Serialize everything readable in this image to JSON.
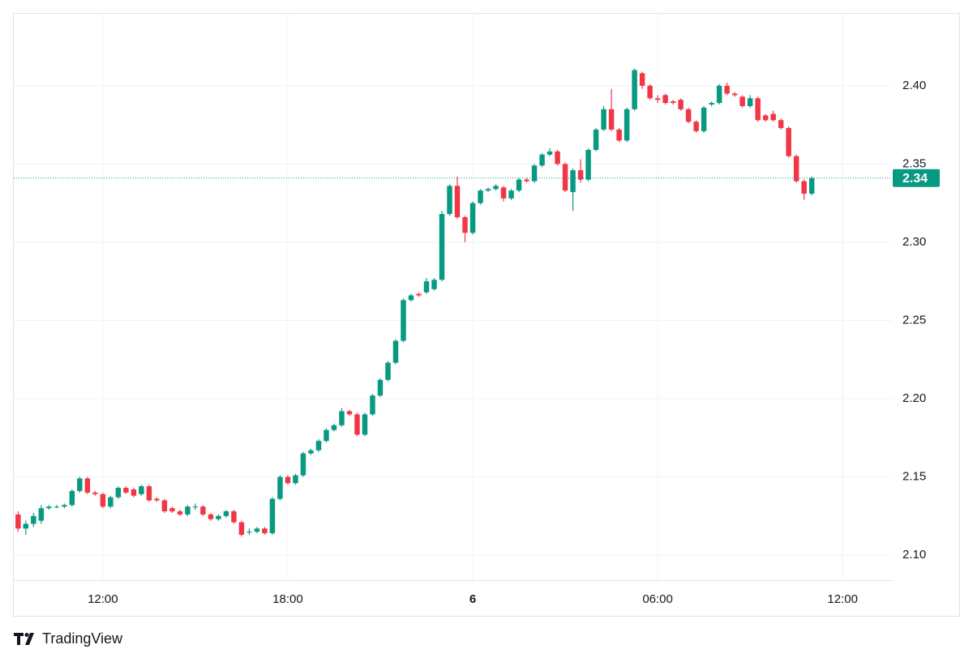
{
  "chart_data": {
    "type": "candlestick",
    "x": [
      -14.75,
      -14.5,
      -14.25,
      -14,
      -13.75,
      -13.5,
      -13.25,
      -13,
      -12.75,
      -12.5,
      -12.25,
      -12,
      -11.75,
      -11.5,
      -11.25,
      -11,
      -10.75,
      -10.5,
      -10.25,
      -10,
      -9.75,
      -9.5,
      -9.25,
      -9,
      -8.75,
      -8.5,
      -8.25,
      -8,
      -7.75,
      -7.5,
      -7.25,
      -7,
      -6.75,
      -6.5,
      -6.25,
      -6,
      -5.75,
      -5.5,
      -5.25,
      -5,
      -4.75,
      -4.5,
      -4.25,
      -4,
      -3.75,
      -3.5,
      -3.25,
      -3,
      -2.75,
      -2.5,
      -2.25,
      -2,
      -1.75,
      -1.5,
      -1.25,
      -1,
      -0.75,
      -0.5,
      -0.25,
      0,
      0.25,
      0.5,
      0.75,
      1,
      1.25,
      1.5,
      1.75,
      2,
      2.25,
      2.5,
      2.75,
      3,
      3.25,
      3.5,
      3.75,
      4,
      4.25,
      4.5,
      4.75,
      5,
      5.25,
      5.5,
      5.75,
      6,
      6.25,
      6.5,
      6.75,
      7,
      7.25,
      7.5,
      7.75,
      8,
      8.25,
      8.5,
      8.75,
      9,
      9.25,
      9.5,
      9.75,
      10,
      10.25,
      10.5,
      10.75,
      11
    ],
    "open": [
      2.126,
      2.117,
      2.12,
      2.122,
      2.13,
      2.131,
      2.131,
      2.132,
      2.141,
      2.149,
      2.14,
      2.139,
      2.131,
      2.137,
      2.143,
      2.142,
      2.139,
      2.144,
      2.136,
      2.135,
      2.13,
      2.128,
      2.126,
      2.131,
      2.131,
      2.126,
      2.123,
      2.125,
      2.128,
      2.121,
      2.115,
      2.115,
      2.117,
      2.114,
      2.136,
      2.15,
      2.146,
      2.151,
      2.165,
      2.167,
      2.173,
      2.18,
      2.183,
      2.192,
      2.19,
      2.177,
      2.19,
      2.202,
      2.212,
      2.223,
      2.237,
      2.263,
      2.267,
      2.268,
      2.27,
      2.276,
      2.318,
      2.336,
      2.316,
      2.306,
      2.325,
      2.333,
      2.334,
      2.335,
      2.328,
      2.333,
      2.34,
      2.339,
      2.349,
      2.356,
      2.358,
      2.35,
      2.332,
      2.346,
      2.34,
      2.359,
      2.372,
      2.385,
      2.372,
      2.365,
      2.385,
      2.408,
      2.4,
      2.392,
      2.394,
      2.39,
      2.391,
      2.385,
      2.377,
      2.371,
      2.388,
      2.389,
      2.4,
      2.395,
      2.393,
      2.387,
      2.392,
      2.381,
      2.382,
      2.378,
      2.373,
      2.355,
      2.339,
      2.331
    ],
    "high": [
      2.128,
      2.122,
      2.127,
      2.132,
      2.132,
      2.132,
      2.133,
      2.142,
      2.15,
      2.15,
      2.141,
      2.14,
      2.138,
      2.144,
      2.144,
      2.143,
      2.145,
      2.145,
      2.137,
      2.136,
      2.131,
      2.129,
      2.132,
      2.133,
      2.132,
      2.127,
      2.126,
      2.129,
      2.129,
      2.122,
      2.117,
      2.118,
      2.118,
      2.137,
      2.151,
      2.151,
      2.152,
      2.166,
      2.168,
      2.174,
      2.181,
      2.184,
      2.194,
      2.193,
      2.191,
      2.191,
      2.203,
      2.213,
      2.224,
      2.238,
      2.264,
      2.267,
      2.268,
      2.277,
      2.277,
      2.32,
      2.337,
      2.342,
      2.317,
      2.326,
      2.334,
      2.335,
      2.337,
      2.336,
      2.334,
      2.341,
      2.341,
      2.35,
      2.357,
      2.36,
      2.359,
      2.351,
      2.347,
      2.353,
      2.36,
      2.373,
      2.387,
      2.398,
      2.373,
      2.386,
      2.411,
      2.409,
      2.401,
      2.394,
      2.395,
      2.391,
      2.392,
      2.386,
      2.378,
      2.387,
      2.39,
      2.401,
      2.402,
      2.396,
      2.394,
      2.394,
      2.393,
      2.382,
      2.384,
      2.379,
      2.374,
      2.356,
      2.34,
      2.342
    ],
    "low": [
      2.115,
      2.113,
      2.118,
      2.12,
      2.129,
      2.13,
      2.13,
      2.131,
      2.14,
      2.139,
      2.138,
      2.13,
      2.13,
      2.136,
      2.139,
      2.137,
      2.138,
      2.134,
      2.134,
      2.127,
      2.127,
      2.125,
      2.125,
      2.129,
      2.125,
      2.122,
      2.122,
      2.124,
      2.12,
      2.112,
      2.113,
      2.114,
      2.113,
      2.113,
      2.135,
      2.145,
      2.145,
      2.15,
      2.164,
      2.166,
      2.172,
      2.179,
      2.182,
      2.189,
      2.176,
      2.176,
      2.189,
      2.201,
      2.211,
      2.222,
      2.236,
      2.262,
      2.265,
      2.267,
      2.269,
      2.275,
      2.317,
      2.315,
      2.3,
      2.305,
      2.324,
      2.332,
      2.333,
      2.326,
      2.327,
      2.332,
      2.338,
      2.338,
      2.348,
      2.355,
      2.349,
      2.332,
      2.32,
      2.338,
      2.339,
      2.358,
      2.371,
      2.371,
      2.364,
      2.364,
      2.384,
      2.398,
      2.391,
      2.389,
      2.388,
      2.388,
      2.384,
      2.376,
      2.37,
      2.37,
      2.387,
      2.388,
      2.394,
      2.393,
      2.386,
      2.386,
      2.377,
      2.377,
      2.377,
      2.372,
      2.354,
      2.338,
      2.327,
      2.33
    ],
    "close": [
      2.117,
      2.12,
      2.125,
      2.13,
      2.131,
      2.131,
      2.132,
      2.141,
      2.149,
      2.14,
      2.139,
      2.131,
      2.137,
      2.143,
      2.14,
      2.138,
      2.144,
      2.135,
      2.135,
      2.128,
      2.128,
      2.126,
      2.131,
      2.131,
      2.126,
      2.123,
      2.125,
      2.128,
      2.121,
      2.113,
      2.115,
      2.117,
      2.114,
      2.136,
      2.15,
      2.146,
      2.151,
      2.165,
      2.167,
      2.173,
      2.18,
      2.183,
      2.192,
      2.19,
      2.177,
      2.19,
      2.202,
      2.212,
      2.223,
      2.237,
      2.263,
      2.266,
      2.266,
      2.275,
      2.276,
      2.318,
      2.336,
      2.316,
      2.306,
      2.325,
      2.333,
      2.334,
      2.336,
      2.328,
      2.333,
      2.34,
      2.339,
      2.349,
      2.356,
      2.358,
      2.35,
      2.333,
      2.346,
      2.34,
      2.359,
      2.372,
      2.385,
      2.372,
      2.365,
      2.385,
      2.41,
      2.4,
      2.392,
      2.391,
      2.389,
      2.389,
      2.385,
      2.377,
      2.371,
      2.386,
      2.389,
      2.4,
      2.395,
      2.394,
      2.387,
      2.392,
      2.378,
      2.378,
      2.378,
      2.373,
      2.355,
      2.339,
      2.331,
      2.341
    ],
    "up_color": "#089981",
    "down_color": "#f23645",
    "last_price": {
      "value": 2.341,
      "label": "2.34"
    },
    "xlim": [
      -14.89,
      13.6
    ],
    "xticks": [
      {
        "value": -12,
        "label": "12:00"
      },
      {
        "value": -6,
        "label": "18:00"
      },
      {
        "value": 0,
        "label": "6"
      },
      {
        "value": 6,
        "label": "06:00"
      },
      {
        "value": 12,
        "label": "12:00"
      }
    ],
    "ylim": [
      2.084,
      2.446
    ],
    "yticks": [
      {
        "value": 2.1,
        "label": "2.10"
      },
      {
        "value": 2.15,
        "label": "2.15"
      },
      {
        "value": 2.2,
        "label": "2.20"
      },
      {
        "value": 2.25,
        "label": "2.25"
      },
      {
        "value": 2.3,
        "label": "2.30"
      },
      {
        "value": 2.35,
        "label": "2.35"
      },
      {
        "value": 2.4,
        "label": "2.40"
      }
    ],
    "grid": true
  },
  "branding": "TradingView"
}
